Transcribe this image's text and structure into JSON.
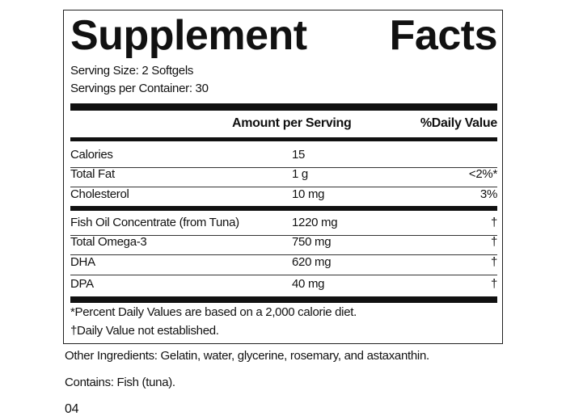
{
  "header": {
    "title": "Supplement Facts",
    "serving_size": "Serving Size: 2 Softgels",
    "servings_per_container": "Servings per Container: 30"
  },
  "table": {
    "columns": [
      "Amount per Serving",
      "%Daily Value"
    ],
    "sections": [
      [
        {
          "name": "Calories",
          "amount": "15"
        },
        {
          "name": "Total Fat",
          "amount": "1 g",
          "daily_value": "<2%*"
        },
        {
          "name": "Cholesterol",
          "amount": "10 mg",
          "daily_value": "3%"
        }
      ],
      [
        {
          "name": "Fish Oil Concentrate (from Tuna)",
          "amount": "1220 mg",
          "daily_value": "†"
        },
        {
          "name": "Total Omega-3",
          "amount": "750 mg",
          "daily_value": "†"
        },
        {
          "name": "DHA",
          "amount": "620 mg",
          "daily_value": "†"
        },
        {
          "name": "DPA",
          "amount": "40 mg",
          "daily_value": "†"
        }
      ]
    ]
  },
  "footnotes": [
    "*Percent Daily Values are based on a 2,000 calorie diet.",
    "†Daily Value not established."
  ],
  "other_ingredients": "Other Ingredients: Gelatin, water, glycerine, rosemary, and astaxanthin.",
  "contains": "Contains: Fish (tuna).",
  "code": "04"
}
